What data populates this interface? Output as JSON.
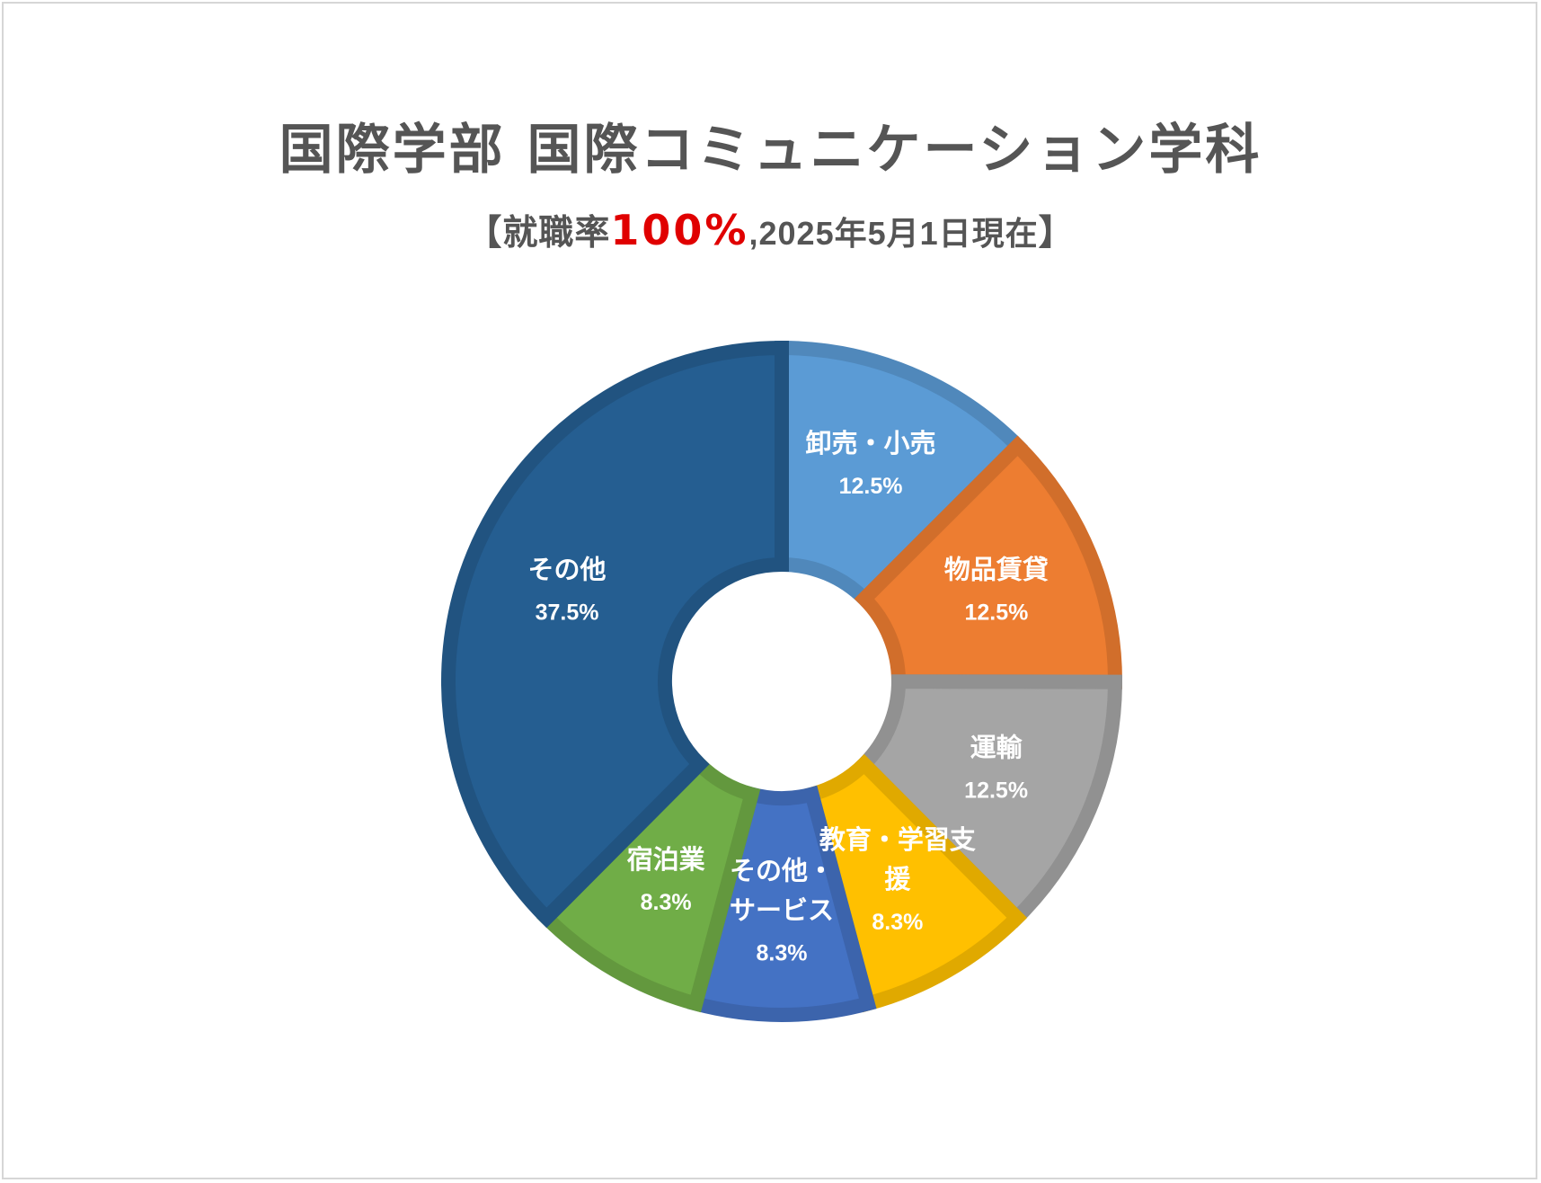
{
  "title": "国際学部 国際コミュニケーション学科",
  "subtitle": {
    "open_bracket": "【",
    "prefix": "就職率",
    "highlight": "100%",
    "suffix": ",2025年5月1日現在",
    "close_bracket": "】",
    "highlight_color": "#e00000"
  },
  "chart_data": {
    "type": "pie",
    "donut": true,
    "slices": [
      {
        "label": "卸売・小売",
        "value": 12.5,
        "display": "12.5%",
        "color": "#5b9bd5",
        "label_lines": [
          "卸売・小売"
        ]
      },
      {
        "label": "物品賃貸",
        "value": 12.5,
        "display": "12.5%",
        "color": "#ed7d31",
        "label_lines": [
          "物品賃貸"
        ]
      },
      {
        "label": "運輸",
        "value": 12.5,
        "display": "12.5%",
        "color": "#a5a5a5",
        "label_lines": [
          "運輸"
        ]
      },
      {
        "label": "教育・学習支援",
        "value": 8.3,
        "display": "8.3%",
        "color": "#ffc000",
        "label_lines": [
          "教育・学習支",
          "援"
        ]
      },
      {
        "label": "その他・サービス",
        "value": 8.3,
        "display": "8.3%",
        "color": "#4472c4",
        "label_lines": [
          "その他・",
          "サービス"
        ]
      },
      {
        "label": "宿泊業",
        "value": 8.3,
        "display": "8.3%",
        "color": "#70ad47",
        "label_lines": [
          "宿泊業"
        ]
      },
      {
        "label": "その他",
        "value": 37.5,
        "display": "37.5%",
        "color": "#255e91",
        "label_lines": [
          "その他"
        ]
      }
    ]
  }
}
